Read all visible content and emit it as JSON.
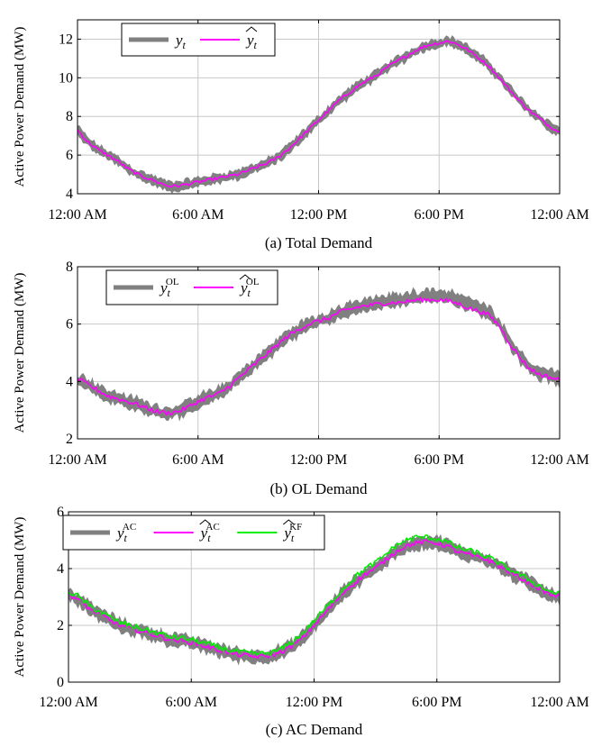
{
  "colors": {
    "actual": "#808080",
    "estimate": "#ff00ff",
    "kf": "#00ee00",
    "grid": "#c8c8c8"
  },
  "chart_data": [
    {
      "type": "line",
      "caption": "(a) Total Demand",
      "ylabel": "Active Power Demand (MW)",
      "ylim": [
        4,
        13
      ],
      "yticks": [
        4,
        6,
        8,
        10,
        12
      ],
      "xlim": [
        0,
        24
      ],
      "xticks": [
        {
          "hour": 0,
          "label": "12:00 AM"
        },
        {
          "hour": 6,
          "label": "6:00 AM"
        },
        {
          "hour": 12,
          "label": "12:00 PM"
        },
        {
          "hour": 18,
          "label": "6:00 PM"
        },
        {
          "hour": 24,
          "label": "12:00 AM"
        }
      ],
      "legend": {
        "position": "top-left",
        "entries": [
          {
            "series": 0,
            "base": "y",
            "sub": "t",
            "sup": "",
            "hat": false
          },
          {
            "series": 1,
            "base": "y",
            "sub": "t",
            "sup": "",
            "hat": true
          }
        ]
      },
      "series": [
        {
          "style": "band",
          "color_key": "actual",
          "noise": 0.22,
          "x": [
            0,
            0.5,
            1,
            1.5,
            2,
            2.5,
            3,
            3.5,
            4,
            4.5,
            5,
            5.5,
            6,
            6.5,
            7,
            7.5,
            8,
            8.5,
            9,
            9.5,
            10,
            10.5,
            11,
            11.5,
            12,
            12.5,
            13,
            13.5,
            14,
            14.5,
            15,
            15.5,
            16,
            16.5,
            17,
            17.5,
            18,
            18.5,
            19,
            19.5,
            20,
            20.5,
            21,
            21.5,
            22,
            22.5,
            23,
            23.5,
            24
          ],
          "y": [
            7.3,
            6.7,
            6.3,
            6.0,
            5.7,
            5.3,
            5.0,
            4.8,
            4.6,
            4.4,
            4.4,
            4.5,
            4.6,
            4.7,
            4.8,
            4.9,
            5.0,
            5.2,
            5.4,
            5.6,
            5.9,
            6.3,
            6.8,
            7.3,
            7.8,
            8.3,
            8.8,
            9.2,
            9.6,
            9.9,
            10.2,
            10.6,
            10.9,
            11.2,
            11.5,
            11.7,
            11.8,
            11.9,
            11.7,
            11.4,
            11.0,
            10.6,
            10.0,
            9.4,
            8.8,
            8.3,
            7.9,
            7.5,
            7.2
          ]
        },
        {
          "style": "line",
          "color_key": "estimate",
          "noise": 0.08,
          "x": [
            0,
            0.5,
            1,
            1.5,
            2,
            2.5,
            3,
            3.5,
            4,
            4.5,
            5,
            5.5,
            6,
            6.5,
            7,
            7.5,
            8,
            8.5,
            9,
            9.5,
            10,
            10.5,
            11,
            11.5,
            12,
            12.5,
            13,
            13.5,
            14,
            14.5,
            15,
            15.5,
            16,
            16.5,
            17,
            17.5,
            18,
            18.5,
            19,
            19.5,
            20,
            20.5,
            21,
            21.5,
            22,
            22.5,
            23,
            23.5,
            24
          ],
          "y": [
            7.3,
            6.7,
            6.3,
            6.0,
            5.7,
            5.3,
            5.0,
            4.8,
            4.6,
            4.4,
            4.4,
            4.5,
            4.6,
            4.7,
            4.8,
            4.9,
            5.0,
            5.2,
            5.4,
            5.6,
            5.9,
            6.3,
            6.8,
            7.3,
            7.8,
            8.3,
            8.8,
            9.2,
            9.6,
            9.9,
            10.2,
            10.6,
            10.9,
            11.2,
            11.5,
            11.7,
            11.8,
            11.9,
            11.7,
            11.4,
            11.0,
            10.6,
            10.0,
            9.4,
            8.8,
            8.3,
            7.9,
            7.5,
            7.2
          ]
        }
      ]
    },
    {
      "type": "line",
      "caption": "(b) OL Demand",
      "ylabel": "Active Power Demand (MW)",
      "ylim": [
        2,
        8
      ],
      "yticks": [
        2,
        4,
        6,
        8
      ],
      "xlim": [
        0,
        24
      ],
      "xticks": [
        {
          "hour": 0,
          "label": "12:00 AM"
        },
        {
          "hour": 6,
          "label": "6:00 AM"
        },
        {
          "hour": 12,
          "label": "12:00 PM"
        },
        {
          "hour": 18,
          "label": "6:00 PM"
        },
        {
          "hour": 24,
          "label": "12:00 AM"
        }
      ],
      "legend": {
        "position": "top-left",
        "entries": [
          {
            "series": 0,
            "base": "y",
            "sub": "t",
            "sup": "OL",
            "hat": false
          },
          {
            "series": 1,
            "base": "y",
            "sub": "t",
            "sup": "OL",
            "hat": true
          }
        ]
      },
      "series": [
        {
          "style": "band",
          "color_key": "actual",
          "noise": 0.2,
          "x": [
            0,
            0.5,
            1,
            1.5,
            2,
            2.5,
            3,
            3.5,
            4,
            4.5,
            5,
            5.5,
            6,
            6.5,
            7,
            7.5,
            8,
            8.5,
            9,
            9.5,
            10,
            10.5,
            11,
            11.5,
            12,
            12.5,
            13,
            13.5,
            14,
            14.5,
            15,
            15.5,
            16,
            16.5,
            17,
            17.5,
            18,
            18.5,
            19,
            19.5,
            20,
            20.5,
            21,
            21.5,
            22,
            22.5,
            23,
            23.5,
            24
          ],
          "y": [
            4.1,
            3.9,
            3.7,
            3.5,
            3.4,
            3.3,
            3.2,
            3.05,
            2.95,
            2.9,
            2.95,
            3.1,
            3.3,
            3.45,
            3.55,
            3.8,
            4.1,
            4.4,
            4.7,
            5.0,
            5.3,
            5.6,
            5.8,
            6.0,
            6.1,
            6.2,
            6.4,
            6.5,
            6.6,
            6.7,
            6.75,
            6.8,
            6.85,
            6.9,
            6.95,
            7.0,
            7.0,
            6.95,
            6.85,
            6.7,
            6.55,
            6.4,
            6.0,
            5.4,
            4.9,
            4.5,
            4.3,
            4.2,
            4.1
          ]
        },
        {
          "style": "line",
          "color_key": "estimate",
          "noise": 0.08,
          "x": [
            0,
            0.5,
            1,
            1.5,
            2,
            2.5,
            3,
            3.5,
            4,
            4.5,
            5,
            5.5,
            6,
            6.5,
            7,
            7.5,
            8,
            8.5,
            9,
            9.5,
            10,
            10.5,
            11,
            11.5,
            12,
            12.5,
            13,
            13.5,
            14,
            14.5,
            15,
            15.5,
            16,
            16.5,
            17,
            17.5,
            18,
            18.5,
            19,
            19.5,
            20,
            20.5,
            21,
            21.5,
            22,
            22.5,
            23,
            23.5,
            24
          ],
          "y": [
            4.1,
            3.9,
            3.7,
            3.5,
            3.4,
            3.3,
            3.2,
            3.05,
            2.95,
            2.9,
            2.95,
            3.1,
            3.3,
            3.45,
            3.55,
            3.8,
            4.1,
            4.4,
            4.7,
            5.0,
            5.3,
            5.6,
            5.8,
            6.0,
            6.1,
            6.2,
            6.4,
            6.5,
            6.6,
            6.65,
            6.7,
            6.75,
            6.75,
            6.8,
            6.85,
            6.85,
            6.85,
            6.8,
            6.7,
            6.55,
            6.45,
            6.3,
            5.95,
            5.35,
            4.85,
            4.45,
            4.25,
            4.15,
            4.05
          ]
        }
      ]
    },
    {
      "type": "line",
      "caption": "(c) AC Demand",
      "ylabel": "Active Power Demand (MW)",
      "ylim": [
        0,
        6
      ],
      "yticks": [
        0,
        2,
        4,
        6
      ],
      "xlim": [
        0,
        24
      ],
      "xticks": [
        {
          "hour": 0,
          "label": "12:00 AM"
        },
        {
          "hour": 6,
          "label": "6:00 AM"
        },
        {
          "hour": 12,
          "label": "12:00 PM"
        },
        {
          "hour": 18,
          "label": "6:00 PM"
        },
        {
          "hour": 24,
          "label": "12:00 AM"
        }
      ],
      "legend": {
        "position": "top-left",
        "entries": [
          {
            "series": 0,
            "base": "y",
            "sub": "t",
            "sup": "AC",
            "hat": false
          },
          {
            "series": 1,
            "base": "y",
            "sub": "t",
            "sup": "AC",
            "hat": true
          },
          {
            "series": 2,
            "base": "y",
            "sub": "t",
            "sup": "KF",
            "hat": true
          }
        ]
      },
      "series": [
        {
          "style": "band",
          "color_key": "actual",
          "noise": 0.2,
          "x": [
            0,
            0.5,
            1,
            1.5,
            2,
            2.5,
            3,
            3.5,
            4,
            4.5,
            5,
            5.5,
            6,
            6.5,
            7,
            7.5,
            8,
            8.5,
            9,
            9.5,
            10,
            10.5,
            11,
            11.5,
            12,
            12.5,
            13,
            13.5,
            14,
            14.5,
            15,
            15.5,
            16,
            16.5,
            17,
            17.5,
            18,
            18.5,
            19,
            19.5,
            20,
            20.5,
            21,
            21.5,
            22,
            22.5,
            23,
            23.5,
            24
          ],
          "y": [
            3.1,
            2.9,
            2.6,
            2.4,
            2.2,
            2.0,
            1.9,
            1.8,
            1.7,
            1.6,
            1.5,
            1.45,
            1.4,
            1.3,
            1.2,
            1.1,
            1.0,
            0.95,
            0.9,
            0.9,
            0.95,
            1.1,
            1.3,
            1.6,
            2.0,
            2.4,
            2.8,
            3.2,
            3.5,
            3.8,
            4.0,
            4.3,
            4.6,
            4.8,
            4.9,
            4.95,
            4.9,
            4.8,
            4.6,
            4.5,
            4.4,
            4.3,
            4.1,
            3.9,
            3.7,
            3.5,
            3.3,
            3.1,
            3.0
          ]
        },
        {
          "style": "line",
          "color_key": "estimate",
          "noise": 0.08,
          "x": [
            0,
            0.5,
            1,
            1.5,
            2,
            2.5,
            3,
            3.5,
            4,
            4.5,
            5,
            5.5,
            6,
            6.5,
            7,
            7.5,
            8,
            8.5,
            9,
            9.5,
            10,
            10.5,
            11,
            11.5,
            12,
            12.5,
            13,
            13.5,
            14,
            14.5,
            15,
            15.5,
            16,
            16.5,
            17,
            17.5,
            18,
            18.5,
            19,
            19.5,
            20,
            20.5,
            21,
            21.5,
            22,
            22.5,
            23,
            23.5,
            24
          ],
          "y": [
            3.1,
            2.9,
            2.6,
            2.4,
            2.2,
            2.0,
            1.9,
            1.8,
            1.7,
            1.6,
            1.5,
            1.45,
            1.4,
            1.3,
            1.2,
            1.1,
            1.0,
            0.95,
            0.9,
            0.9,
            0.95,
            1.1,
            1.3,
            1.6,
            2.0,
            2.4,
            2.8,
            3.2,
            3.5,
            3.8,
            4.0,
            4.3,
            4.6,
            4.8,
            4.9,
            4.95,
            4.9,
            4.8,
            4.6,
            4.5,
            4.4,
            4.3,
            4.1,
            3.9,
            3.7,
            3.5,
            3.3,
            3.1,
            3.0
          ]
        },
        {
          "style": "line",
          "color_key": "kf",
          "noise": 0.1,
          "x": [
            0,
            0.5,
            1,
            1.5,
            2,
            2.5,
            3,
            3.5,
            4,
            4.5,
            5,
            5.5,
            6,
            6.5,
            7,
            7.5,
            8,
            8.5,
            9,
            9.5,
            10,
            10.5,
            11,
            11.5,
            12,
            12.5,
            13,
            13.5,
            14,
            14.5,
            15,
            15.5,
            16,
            16.5,
            17,
            17.5,
            18,
            18.5,
            19,
            19.5,
            20,
            20.5,
            21,
            21.5,
            22,
            22.5,
            23,
            23.5,
            24
          ],
          "y": [
            3.2,
            3.0,
            2.7,
            2.5,
            2.3,
            2.1,
            2.0,
            1.9,
            1.8,
            1.7,
            1.6,
            1.55,
            1.5,
            1.4,
            1.3,
            1.2,
            1.1,
            1.05,
            1.0,
            1.0,
            1.05,
            1.2,
            1.45,
            1.75,
            2.15,
            2.55,
            2.95,
            3.35,
            3.7,
            4.0,
            4.2,
            4.5,
            4.8,
            5.0,
            5.1,
            5.1,
            5.05,
            4.95,
            4.75,
            4.65,
            4.55,
            4.4,
            4.2,
            4.0,
            3.8,
            3.6,
            3.4,
            3.2,
            3.1
          ]
        }
      ]
    }
  ]
}
